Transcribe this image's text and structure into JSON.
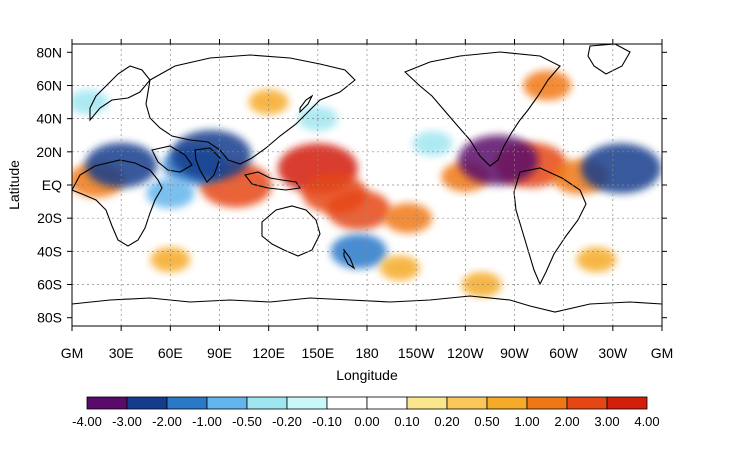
{
  "figure": {
    "x_axis_title": "Longitude",
    "y_axis_title": "Latitude",
    "x_tick_labels": [
      "GM",
      "30E",
      "60E",
      "90E",
      "120E",
      "150E",
      "180",
      "150W",
      "120W",
      "90W",
      "60W",
      "30W",
      "GM"
    ],
    "y_tick_labels": [
      "80N",
      "60N",
      "40N",
      "20N",
      "EQ",
      "20S",
      "40S",
      "60S",
      "80S"
    ],
    "colorbar": {
      "tick_labels": [
        "-4.00",
        "-3.00",
        "-2.00",
        "-1.00",
        "-0.50",
        "-0.20",
        "-0.10",
        "0.00",
        "0.10",
        "0.20",
        "0.50",
        "1.00",
        "2.00",
        "3.00",
        "4.00"
      ],
      "colors": [
        "#5a0a6a",
        "#143c8c",
        "#2a78c8",
        "#64b4ee",
        "#a0e6f0",
        "#c8f8fa",
        "#ffffff",
        "#ffffff",
        "#fae68c",
        "#fac85a",
        "#f5aa28",
        "#f07814",
        "#e64614",
        "#d21e0a"
      ]
    }
  },
  "chart_data": {
    "type": "heatmap",
    "map": "global lat-lon anomaly map",
    "xlabel": "Longitude",
    "ylabel": "Latitude",
    "x_ticks": [
      "GM",
      "30E",
      "60E",
      "90E",
      "120E",
      "150E",
      "180",
      "150W",
      "120W",
      "90W",
      "60W",
      "30W",
      "GM"
    ],
    "y_ticks": [
      "80N",
      "60N",
      "40N",
      "20N",
      "EQ",
      "20S",
      "40S",
      "60S",
      "80S"
    ],
    "xlim": [
      0,
      360
    ],
    "ylim": [
      -85,
      85
    ],
    "grid": true,
    "color_levels": [
      -4.0,
      -3.0,
      -2.0,
      -1.0,
      -0.5,
      -0.2,
      -0.1,
      0.0,
      0.1,
      0.2,
      0.5,
      1.0,
      2.0,
      3.0,
      4.0
    ],
    "colormap": [
      "#5a0a6a",
      "#143c8c",
      "#2a78c8",
      "#64b4ee",
      "#a0e6f0",
      "#c8f8fa",
      "#ffffff",
      "#ffffff",
      "#fae68c",
      "#fac85a",
      "#f5aa28",
      "#f07814",
      "#e64614",
      "#d21e0a"
    ],
    "features": [
      {
        "lon": 150,
        "lat": 10,
        "value": 3.0
      },
      {
        "lon": 160,
        "lat": -5,
        "value": 2.0
      },
      {
        "lon": 100,
        "lat": 0,
        "value": 2.5
      },
      {
        "lon": 175,
        "lat": -15,
        "value": 2.0
      },
      {
        "lon": 205,
        "lat": -20,
        "value": 1.0
      },
      {
        "lon": 240,
        "lat": 5,
        "value": 1.0
      },
      {
        "lon": 280,
        "lat": 12,
        "value": 2.5
      },
      {
        "lon": 310,
        "lat": 5,
        "value": 1.5
      },
      {
        "lon": 15,
        "lat": 3,
        "value": 1.5
      },
      {
        "lon": 30,
        "lat": 12,
        "value": -2.5
      },
      {
        "lon": 75,
        "lat": 12,
        "value": -2.0
      },
      {
        "lon": 85,
        "lat": 18,
        "value": -3.0
      },
      {
        "lon": 260,
        "lat": 15,
        "value": -3.5
      },
      {
        "lon": 335,
        "lat": 10,
        "value": -3.0
      },
      {
        "lon": 175,
        "lat": -40,
        "value": -1.5
      },
      {
        "lon": 60,
        "lat": -5,
        "value": -1.0
      },
      {
        "lon": 220,
        "lat": 25,
        "value": -0.5
      },
      {
        "lon": 10,
        "lat": 50,
        "value": -0.5
      },
      {
        "lon": 120,
        "lat": 50,
        "value": 0.5
      },
      {
        "lon": 200,
        "lat": -50,
        "value": 0.5
      },
      {
        "lon": 320,
        "lat": -45,
        "value": 0.5
      },
      {
        "lon": 250,
        "lat": -60,
        "value": 0.5
      },
      {
        "lon": 60,
        "lat": -45,
        "value": 0.5
      },
      {
        "lon": 290,
        "lat": 60,
        "value": 1.0
      },
      {
        "lon": 150,
        "lat": 40,
        "value": -0.5
      }
    ]
  }
}
